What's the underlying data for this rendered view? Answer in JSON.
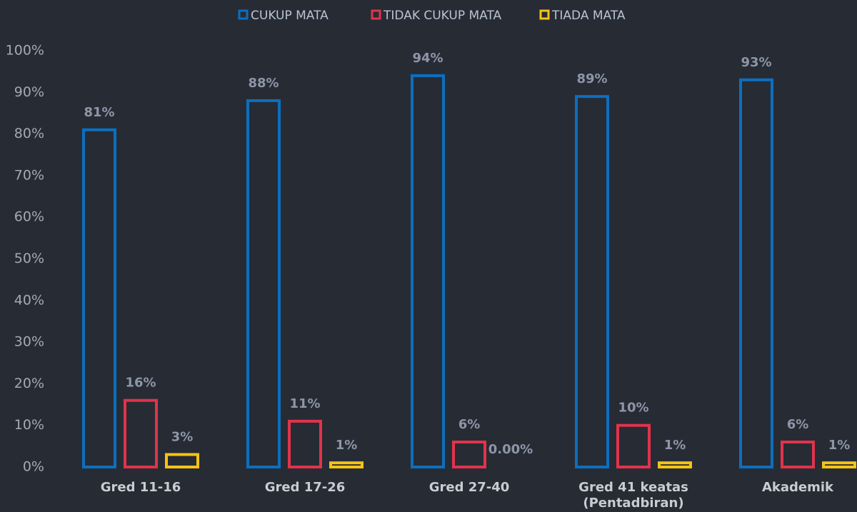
{
  "chart_data": {
    "type": "bar",
    "categories": [
      "Gred 11-16",
      "Gred 17-26",
      "Gred 27-40",
      "Gred 41 keatas (Pentadbiran)",
      "Akademik"
    ],
    "series": [
      {
        "name": "CUKUP MATA",
        "color": "#0b6fc0",
        "values": [
          81,
          88,
          94,
          89,
          93
        ],
        "value_labels": [
          "81%",
          "88%",
          "94%",
          "89%",
          "93%"
        ]
      },
      {
        "name": "TIDAK CUKUP MATA",
        "color": "#e2334c",
        "values": [
          16,
          11,
          6,
          10,
          6
        ],
        "value_labels": [
          "16%",
          "11%",
          "6%",
          "10%",
          "6%"
        ]
      },
      {
        "name": "TIADA MATA",
        "color": "#f4c316",
        "values": [
          3,
          1,
          0,
          1,
          1
        ],
        "value_labels": [
          "3%",
          "1%",
          "0.00%",
          "1%",
          "1%"
        ]
      }
    ],
    "ylim": [
      0,
      100
    ],
    "yticks": [
      {
        "value": 0,
        "label": "0%"
      },
      {
        "value": 10,
        "label": "10%"
      },
      {
        "value": 20,
        "label": "20%"
      },
      {
        "value": 30,
        "label": "30%"
      },
      {
        "value": 40,
        "label": "40%"
      },
      {
        "value": 50,
        "label": "50%"
      },
      {
        "value": 60,
        "label": "60%"
      },
      {
        "value": 70,
        "label": "70%"
      },
      {
        "value": 80,
        "label": "80%"
      },
      {
        "value": 90,
        "label": "90%"
      },
      {
        "value": 100,
        "label": "100%"
      }
    ],
    "grid": false,
    "legend": "top"
  }
}
